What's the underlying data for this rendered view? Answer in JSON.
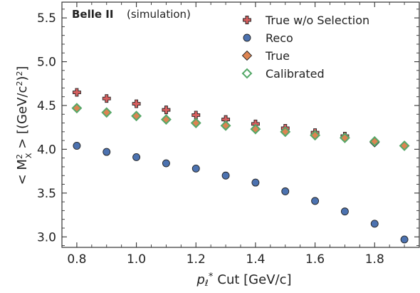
{
  "chart_data": {
    "type": "scatter",
    "title": "",
    "watermark": {
      "experiment": "Belle II",
      "note": "(simulation)"
    },
    "xlabel": {
      "symbol": "p",
      "subscript": "ℓ",
      "superscript": "*",
      "text": "Cut [GeV/c]"
    },
    "ylabel": {
      "open": "< M",
      "sup": "2",
      "sub": "X",
      "close": " >  [(GeV/c",
      "unit_sup": "2",
      "end": ")",
      "end_sup": "2",
      "final": "]"
    },
    "xlim": [
      0.75,
      1.95
    ],
    "ylim": [
      2.88,
      5.68
    ],
    "xticks": [
      "0.8",
      "1.0",
      "1.2",
      "1.4",
      "1.6",
      "1.8"
    ],
    "xtick_values": [
      0.8,
      1.0,
      1.2,
      1.4,
      1.6,
      1.8
    ],
    "yticks": [
      "3.0",
      "3.5",
      "4.0",
      "4.5",
      "5.0",
      "5.5"
    ],
    "ytick_values": [
      3.0,
      3.5,
      4.0,
      4.5,
      5.0,
      5.5
    ],
    "x": [
      0.8,
      0.9,
      1.0,
      1.1,
      1.2,
      1.3,
      1.4,
      1.5,
      1.6,
      1.7,
      1.8,
      1.9
    ],
    "series": [
      {
        "name": "True w/o Selection",
        "marker": "plus",
        "color": "#d65f5f",
        "values": [
          4.65,
          4.58,
          4.52,
          4.45,
          4.39,
          4.34,
          4.29,
          4.24,
          4.19,
          4.15,
          null,
          null
        ]
      },
      {
        "name": "Reco",
        "marker": "circle",
        "color": "#4c72b0",
        "values": [
          4.04,
          3.97,
          3.91,
          3.84,
          3.78,
          3.7,
          3.62,
          3.52,
          3.41,
          3.29,
          3.15,
          2.97
        ]
      },
      {
        "name": "True",
        "marker": "diamond-filled",
        "color": "#dd8452",
        "values": [
          4.47,
          4.42,
          4.38,
          4.34,
          4.3,
          4.27,
          4.23,
          4.2,
          4.16,
          4.13,
          4.08,
          4.04
        ]
      },
      {
        "name": "Calibrated",
        "marker": "diamond-open",
        "color": "#55a868",
        "values": [
          4.47,
          4.42,
          4.38,
          4.34,
          4.3,
          4.27,
          4.23,
          4.2,
          4.16,
          4.13,
          4.09,
          4.04
        ]
      }
    ],
    "legend_position": "top-right",
    "grid": false
  }
}
